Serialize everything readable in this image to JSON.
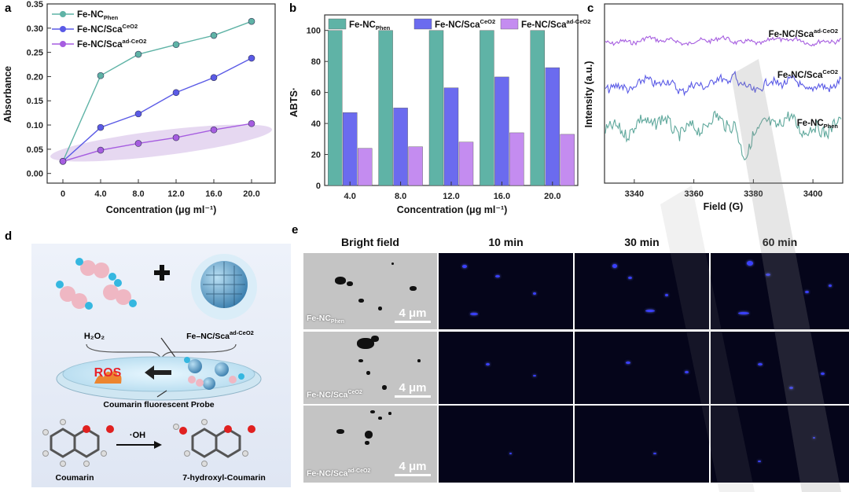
{
  "panel_letters": {
    "a": "a",
    "b": "b",
    "c": "c",
    "d": "d",
    "e": "e"
  },
  "chart_data": [
    {
      "type": "line",
      "panel": "a",
      "ylabel": "Absorbance",
      "xlabel": "Concentration (μg ml⁻¹)",
      "x_ticks": [
        "0",
        "4.0",
        "8.0",
        "12.0",
        "16.0",
        "20.0"
      ],
      "y_ticks": [
        "0.00",
        "0.05",
        "0.10",
        "0.15",
        "0.20",
        "0.25",
        "0.30",
        "0.35"
      ],
      "ylim": [
        -0.02,
        0.35
      ],
      "x": [
        0,
        4,
        8,
        12,
        16,
        20
      ],
      "series": [
        {
          "name": "Fe-NC",
          "sub": "Phen",
          "sup": "",
          "color": "#5fb3a6",
          "values": [
            0.025,
            0.202,
            0.246,
            0.266,
            0.285,
            0.314
          ]
        },
        {
          "name": "Fe-NC/Sca",
          "sub": "",
          "sup": "CeO2",
          "color": "#5a5ae6",
          "values": [
            0.025,
            0.095,
            0.123,
            0.167,
            0.198,
            0.238
          ]
        },
        {
          "name": "Fe-NC/Sca",
          "sub": "",
          "sup": "ad-CeO2",
          "color": "#a65de0",
          "values": [
            0.025,
            0.048,
            0.062,
            0.074,
            0.09,
            0.103
          ]
        }
      ],
      "legend_position": "top-left"
    },
    {
      "type": "bar",
      "panel": "b",
      "ylabel": "ABTS·",
      "xlabel": "Concentration (μg ml⁻¹)",
      "categories": [
        "4.0",
        "8.0",
        "12.0",
        "16.0",
        "20.0"
      ],
      "y_ticks": [
        "0",
        "20",
        "40",
        "60",
        "80",
        "100"
      ],
      "ylim": [
        0,
        110
      ],
      "series": [
        {
          "name": "Fe-NC",
          "sub": "Phen",
          "sup": "",
          "color": "#5fb3a6",
          "values": [
            100,
            100,
            100,
            100,
            100
          ]
        },
        {
          "name": "Fe-NC/Sca",
          "sub": "",
          "sup": "CeO2",
          "color": "#6b6bef",
          "values": [
            47,
            50,
            63,
            70,
            76
          ]
        },
        {
          "name": "Fe-NC/Sca",
          "sub": "",
          "sup": "ad-CeO2",
          "color": "#c48cf0",
          "values": [
            24,
            25,
            28,
            34,
            33
          ]
        }
      ],
      "legend_position": "top"
    },
    {
      "type": "line",
      "panel": "c",
      "ylabel": "Intensity (a.u.)",
      "xlabel": "Field (G)",
      "x_ticks": [
        "3340",
        "3360",
        "3380",
        "3400"
      ],
      "xlim": [
        3330,
        3410
      ],
      "series": [
        {
          "name": "Fe-NC/Sca",
          "sub": "",
          "sup": "ad-CeO2",
          "color": "#a65de0"
        },
        {
          "name": "Fe-NC/Sca",
          "sub": "",
          "sup": "CeO2",
          "color": "#5a5ae6"
        },
        {
          "name": "Fe-NC",
          "sub": "Phen",
          "sup": "",
          "color": "#5fa89c"
        }
      ]
    }
  ],
  "panel_d": {
    "h2o2": "H₂O₂",
    "fe_label": "Fe–NC/Sca",
    "fe_sup": "ad-CeO2",
    "ros": "ROS",
    "probe": "Coumarin fluorescent Probe",
    "oh": "·OH",
    "coumarin": "Coumarin",
    "hydroxy": "7-hydroxyl-Coumarin"
  },
  "panel_e": {
    "columns": [
      "Bright field",
      "10 min",
      "30 min",
      "60 min"
    ],
    "rows": [
      {
        "name": "Fe-NC",
        "sub": "Phen",
        "sup": ""
      },
      {
        "name": "Fe-NC/Sca",
        "sub": "",
        "sup": "CeO2"
      },
      {
        "name": "Fe-NC/Sca",
        "sub": "",
        "sup": "ad-CeO2"
      }
    ],
    "scale_bar": "4 μm"
  }
}
